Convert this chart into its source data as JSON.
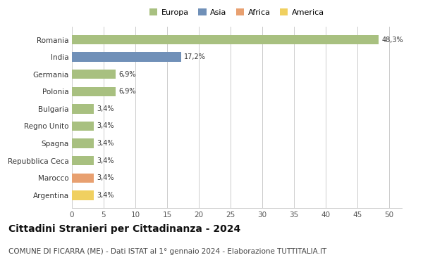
{
  "categories": [
    "Argentina",
    "Marocco",
    "Repubblica Ceca",
    "Spagna",
    "Regno Unito",
    "Bulgaria",
    "Polonia",
    "Germania",
    "India",
    "Romania"
  ],
  "values": [
    3.4,
    3.4,
    3.4,
    3.4,
    3.4,
    3.4,
    6.9,
    6.9,
    17.2,
    48.3
  ],
  "labels": [
    "3,4%",
    "3,4%",
    "3,4%",
    "3,4%",
    "3,4%",
    "3,4%",
    "6,9%",
    "6,9%",
    "17,2%",
    "48,3%"
  ],
  "colors": [
    "#f0d060",
    "#e8a070",
    "#a8c080",
    "#a8c080",
    "#a8c080",
    "#a8c080",
    "#a8c080",
    "#a8c080",
    "#7090b8",
    "#a8c080"
  ],
  "legend": [
    {
      "label": "Europa",
      "color": "#a8c080"
    },
    {
      "label": "Asia",
      "color": "#7090b8"
    },
    {
      "label": "Africa",
      "color": "#e8a070"
    },
    {
      "label": "America",
      "color": "#f0d060"
    }
  ],
  "xlim": [
    0,
    52
  ],
  "xticks": [
    0,
    5,
    10,
    15,
    20,
    25,
    30,
    35,
    40,
    45,
    50
  ],
  "title": "Cittadini Stranieri per Cittadinanza - 2024",
  "subtitle": "COMUNE DI FICARRA (ME) - Dati ISTAT al 1° gennaio 2024 - Elaborazione TUTTITALIA.IT",
  "title_fontsize": 10,
  "subtitle_fontsize": 7.5,
  "background_color": "#ffffff",
  "grid_color": "#cccccc",
  "bar_height": 0.55
}
